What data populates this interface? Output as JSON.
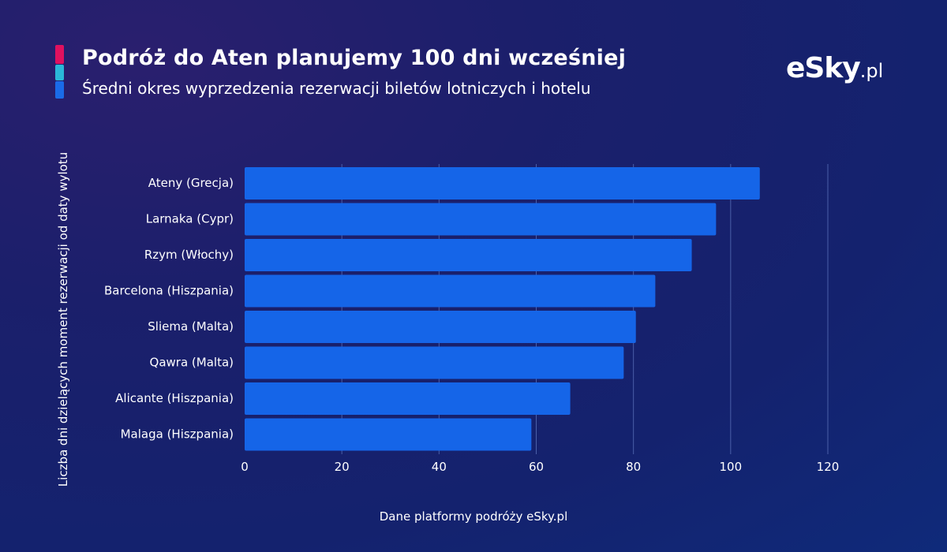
{
  "header": {
    "title": "Podróż do Aten planujemy 100 dni wcześniej",
    "subtitle": "Średni okres wyprzedzenia rezerwacji biletów lotniczych i hotelu"
  },
  "logo": {
    "text": "eSky",
    "tld": ".pl"
  },
  "footer": {
    "source": "Dane platformy podróży eSky.pl"
  },
  "colors": {
    "bar": "#1565e8",
    "accent_top": "#e0115f",
    "accent_middle": "#2ab8d8",
    "accent_bottom": "#1a6be8",
    "gridline": "#4a5fa8"
  },
  "chart_data": {
    "type": "bar",
    "orientation": "horizontal",
    "title": "Podróż do Aten planujemy 100 dni wcześniej",
    "subtitle": "Średni okres wyprzedzenia rezerwacji biletów lotniczych i hotelu",
    "ylabel": "Liczba dni dzielących moment rezerwacji od daty wylotu",
    "xlabel": "",
    "categories": [
      "Ateny (Grecja)",
      "Larnaka (Cypr)",
      "Rzym (Włochy)",
      "Barcelona (Hiszpania)",
      "Sliema (Malta)",
      "Qawra (Malta)",
      "Alicante (Hiszpania)",
      "Malaga (Hiszpania)"
    ],
    "values": [
      106,
      97,
      92,
      84.5,
      80.5,
      78,
      67,
      59
    ],
    "xlim": [
      0,
      120
    ],
    "ticks": [
      0,
      20,
      40,
      60,
      80,
      100,
      120
    ],
    "tick_labels": [
      "0",
      "20",
      "40",
      "60",
      "80",
      "100",
      "120"
    ],
    "grid": true
  }
}
